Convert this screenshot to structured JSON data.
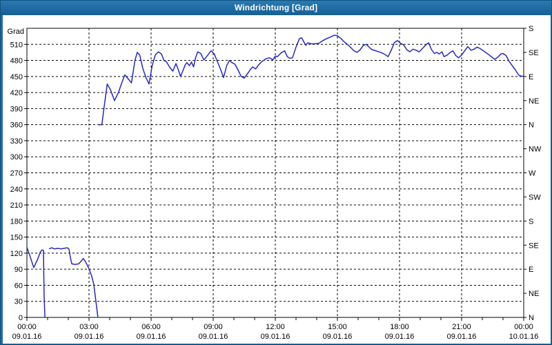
{
  "window": {
    "title": "Windrichtung [Grad]"
  },
  "colors": {
    "frame": "#1d6ca3",
    "title_text": "#ffffff",
    "plot_bg": "#ffffff",
    "line": "#2626c4",
    "axis": "#000000",
    "grid": "#000000"
  },
  "chart_data": {
    "type": "line",
    "title": "Windrichtung [Grad]",
    "series_name": "Windrichtung",
    "y_axis": {
      "label": "Grad",
      "min": 0,
      "max": 540,
      "tick_step": 30,
      "tick_labels": [
        "0",
        "30",
        "60",
        "90",
        "120",
        "150",
        "180",
        "210",
        "240",
        "270",
        "300",
        "330",
        "360",
        "390",
        "420",
        "450",
        "480",
        "510"
      ],
      "grid": true
    },
    "y_right_axis": {
      "tick_step": 45,
      "labels": [
        "N",
        "NE",
        "E",
        "SE",
        "S",
        "SW",
        "W",
        "NW",
        "N",
        "NE",
        "E",
        "SE",
        "S"
      ]
    },
    "x_axis": {
      "hours_span": 24,
      "minor_tick_hours": 1,
      "major_tick_hours": 3,
      "grid_step_hours": 3,
      "major_labels": [
        {
          "time": "00:00",
          "date": "09.01.16"
        },
        {
          "time": "03:00",
          "date": "09.01.16"
        },
        {
          "time": "06:00",
          "date": "09.01.16"
        },
        {
          "time": "09:00",
          "date": "09.01.16"
        },
        {
          "time": "12:00",
          "date": "09.01.16"
        },
        {
          "time": "15:00",
          "date": "09.01.16"
        },
        {
          "time": "18:00",
          "date": "09.01.16"
        },
        {
          "time": "21:00",
          "date": "09.01.16"
        },
        {
          "time": "00:00",
          "date": "10.01.16"
        }
      ]
    },
    "segments": [
      [
        [
          0,
          131
        ],
        [
          0.17,
          112
        ],
        [
          0.33,
          93
        ],
        [
          0.5,
          107
        ],
        [
          0.65,
          122
        ],
        [
          0.73,
          126
        ],
        [
          0.8,
          125
        ],
        [
          0.83,
          40
        ],
        [
          0.87,
          0
        ]
      ],
      [
        [
          1.07,
          128
        ],
        [
          1.2,
          130
        ],
        [
          1.33,
          128
        ],
        [
          1.5,
          129
        ],
        [
          1.63,
          128
        ],
        [
          1.8,
          129
        ],
        [
          1.95,
          130
        ],
        [
          2.03,
          128
        ],
        [
          2.1,
          112
        ],
        [
          2.17,
          100
        ],
        [
          2.33,
          99
        ],
        [
          2.5,
          100
        ],
        [
          2.62,
          105
        ],
        [
          2.72,
          110
        ],
        [
          2.83,
          104
        ],
        [
          3.0,
          91
        ],
        [
          3.13,
          77
        ],
        [
          3.23,
          62
        ],
        [
          3.35,
          25
        ],
        [
          3.43,
          0
        ]
      ],
      [
        [
          3.45,
          360
        ],
        [
          3.62,
          360
        ],
        [
          3.72,
          390
        ],
        [
          3.88,
          436
        ],
        [
          4.05,
          424
        ],
        [
          4.23,
          405
        ],
        [
          4.42,
          420
        ],
        [
          4.6,
          440
        ],
        [
          4.73,
          453
        ],
        [
          4.88,
          446
        ],
        [
          5.05,
          438
        ],
        [
          5.22,
          480
        ],
        [
          5.33,
          495
        ],
        [
          5.45,
          490
        ],
        [
          5.6,
          465
        ],
        [
          5.75,
          448
        ],
        [
          5.9,
          436
        ],
        [
          6.05,
          470
        ],
        [
          6.2,
          490
        ],
        [
          6.35,
          496
        ],
        [
          6.5,
          492
        ],
        [
          6.62,
          480
        ],
        [
          6.75,
          477
        ],
        [
          6.9,
          467
        ],
        [
          7.05,
          460
        ],
        [
          7.2,
          474
        ],
        [
          7.32,
          462
        ],
        [
          7.42,
          450
        ],
        [
          7.55,
          462
        ],
        [
          7.65,
          472
        ],
        [
          7.73,
          476
        ],
        [
          7.85,
          470
        ],
        [
          7.95,
          477
        ],
        [
          8.05,
          468
        ],
        [
          8.15,
          485
        ],
        [
          8.25,
          496
        ],
        [
          8.4,
          493
        ],
        [
          8.55,
          481
        ],
        [
          8.7,
          488
        ],
        [
          8.9,
          498
        ],
        [
          9.05,
          492
        ],
        [
          9.2,
          478
        ],
        [
          9.35,
          464
        ],
        [
          9.5,
          448
        ],
        [
          9.65,
          470
        ],
        [
          9.78,
          480
        ],
        [
          9.9,
          476
        ],
        [
          10.05,
          473
        ],
        [
          10.2,
          462
        ],
        [
          10.35,
          450
        ],
        [
          10.5,
          447
        ],
        [
          10.65,
          455
        ],
        [
          10.78,
          462
        ],
        [
          10.9,
          468
        ],
        [
          11.05,
          464
        ],
        [
          11.2,
          472
        ],
        [
          11.35,
          478
        ],
        [
          11.55,
          483
        ],
        [
          11.72,
          485
        ],
        [
          11.88,
          481
        ],
        [
          12.0,
          488
        ],
        [
          12.1,
          487
        ],
        [
          12.28,
          494
        ],
        [
          12.45,
          498
        ],
        [
          12.58,
          487
        ],
        [
          12.7,
          484
        ],
        [
          12.83,
          485
        ],
        [
          13.0,
          505
        ],
        [
          13.17,
          521
        ],
        [
          13.28,
          522
        ],
        [
          13.4,
          513
        ],
        [
          13.47,
          508
        ],
        [
          13.57,
          513
        ],
        [
          13.72,
          511
        ],
        [
          13.9,
          511
        ],
        [
          14.1,
          512
        ],
        [
          14.3,
          517
        ],
        [
          14.5,
          521
        ],
        [
          14.68,
          524
        ],
        [
          14.85,
          527
        ],
        [
          15.0,
          526
        ],
        [
          15.17,
          521
        ],
        [
          15.32,
          515
        ],
        [
          15.45,
          511
        ],
        [
          15.62,
          505
        ],
        [
          15.8,
          498
        ],
        [
          15.95,
          495
        ],
        [
          16.1,
          500
        ],
        [
          16.25,
          508
        ],
        [
          16.4,
          510
        ],
        [
          16.55,
          504
        ],
        [
          16.68,
          500
        ],
        [
          16.85,
          498
        ],
        [
          17.0,
          496
        ],
        [
          17.15,
          494
        ],
        [
          17.3,
          491
        ],
        [
          17.45,
          487
        ],
        [
          17.6,
          499
        ],
        [
          17.75,
          513
        ],
        [
          17.9,
          517
        ],
        [
          18.05,
          512
        ],
        [
          18.2,
          509
        ],
        [
          18.35,
          500
        ],
        [
          18.5,
          496
        ],
        [
          18.65,
          501
        ],
        [
          18.8,
          499
        ],
        [
          18.95,
          496
        ],
        [
          19.1,
          502
        ],
        [
          19.25,
          508
        ],
        [
          19.4,
          513
        ],
        [
          19.55,
          500
        ],
        [
          19.68,
          493
        ],
        [
          19.8,
          495
        ],
        [
          19.92,
          492
        ],
        [
          20.05,
          496
        ],
        [
          20.15,
          487
        ],
        [
          20.3,
          490
        ],
        [
          20.45,
          495
        ],
        [
          20.58,
          498
        ],
        [
          20.72,
          489
        ],
        [
          20.85,
          485
        ],
        [
          21.0,
          490
        ],
        [
          21.15,
          498
        ],
        [
          21.3,
          506
        ],
        [
          21.45,
          499
        ],
        [
          21.6,
          501
        ],
        [
          21.75,
          505
        ],
        [
          21.9,
          502
        ],
        [
          22.05,
          498
        ],
        [
          22.2,
          494
        ],
        [
          22.4,
          488
        ],
        [
          22.6,
          482
        ],
        [
          22.75,
          486
        ],
        [
          22.9,
          492
        ],
        [
          23.0,
          493
        ],
        [
          23.15,
          489
        ],
        [
          23.3,
          478
        ],
        [
          23.45,
          470
        ],
        [
          23.6,
          462
        ],
        [
          23.75,
          453
        ],
        [
          23.85,
          451
        ],
        [
          24.0,
          450
        ]
      ]
    ]
  }
}
